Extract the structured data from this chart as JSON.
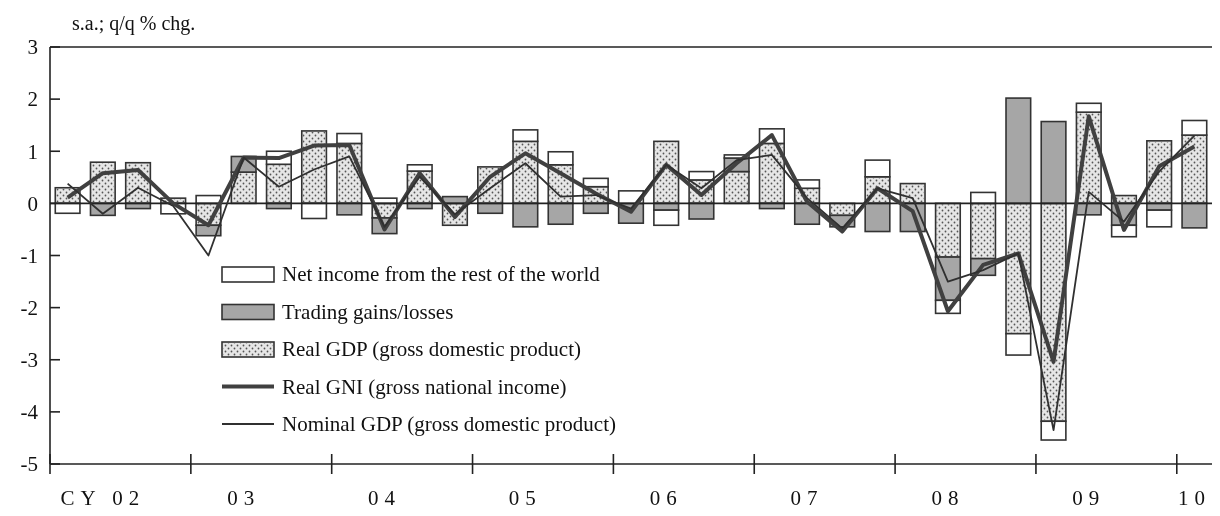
{
  "chart_data": {
    "type": "bar",
    "stacked": true,
    "ylabel": "s.a.; q/q % chg.",
    "categories": [
      null,
      "CY 02",
      null,
      null,
      null,
      "03",
      null,
      null,
      null,
      "04",
      null,
      null,
      null,
      "05",
      null,
      null,
      null,
      "06",
      null,
      null,
      null,
      "07",
      null,
      null,
      null,
      "08",
      null,
      null,
      null,
      "09",
      null,
      null,
      "10"
    ],
    "series": [
      {
        "name": "Real GDP (gross domestic product)",
        "color": "#e6e6e6",
        "values": [
          0.3,
          0.79,
          0.78,
          0.1,
          -0.42,
          0.6,
          0.75,
          1.39,
          1.15,
          -0.28,
          0.62,
          -0.42,
          0.7,
          1.19,
          0.74,
          0.32,
          0,
          1.19,
          0.45,
          0.61,
          1.15,
          0.29,
          -0.23,
          0.51,
          0.38,
          -1.03,
          -1.06,
          -2.5,
          -4.18,
          1.75,
          0.15,
          1.2,
          1.31
        ]
      },
      {
        "name": "Trading gains/losses",
        "color": "#a6a6a6",
        "values": [
          0,
          -0.23,
          -0.1,
          0,
          -0.2,
          0.3,
          -0.1,
          0,
          -0.22,
          -0.3,
          -0.1,
          0.13,
          -0.19,
          -0.45,
          -0.4,
          -0.19,
          -0.38,
          -0.13,
          -0.3,
          0.26,
          -0.1,
          -0.4,
          -0.22,
          -0.54,
          -0.54,
          -0.83,
          -0.32,
          2.02,
          1.57,
          -0.22,
          -0.42,
          -0.13,
          -0.47
        ]
      },
      {
        "name": "Net income from the rest of the world",
        "color": "#ffffff",
        "values": [
          -0.19,
          0,
          0,
          -0.2,
          0.15,
          0,
          0.25,
          -0.29,
          0.19,
          0.1,
          0.12,
          0,
          0,
          0.22,
          0.25,
          0.16,
          0.24,
          -0.29,
          0.16,
          0.06,
          0.28,
          0.16,
          0,
          0.32,
          0,
          -0.25,
          0.21,
          -0.41,
          -0.36,
          0.17,
          -0.22,
          -0.32,
          0.28
        ]
      },
      {
        "name": "Real GNI (gross national income)",
        "type": "line",
        "color": "#404040",
        "values": [
          0.11,
          0.58,
          0.64,
          0,
          -0.42,
          0.88,
          0.87,
          1.11,
          1.12,
          -0.5,
          0.58,
          -0.26,
          0.51,
          0.96,
          0.58,
          0.19,
          -0.16,
          0.74,
          0.16,
          0.77,
          1.31,
          0.03,
          -0.54,
          0.29,
          -0.15,
          -2.07,
          -1.18,
          -0.96,
          -3.04,
          1.67,
          -0.51,
          0.71,
          1.09
        ]
      },
      {
        "name": "Nominal GDP (gross domestic product)",
        "type": "line",
        "color": "#303030",
        "values": [
          0.38,
          -0.2,
          0.3,
          -0.05,
          -1.0,
          0.88,
          0.32,
          0.65,
          0.9,
          -0.45,
          0.51,
          -0.21,
          0.29,
          0.77,
          0.13,
          0.16,
          -0.1,
          0.74,
          0.29,
          0.83,
          0.93,
          0.1,
          -0.48,
          0.29,
          0.1,
          -1.5,
          -1.28,
          -0.96,
          -4.35,
          0.22,
          -0.35,
          0.61,
          1.3
        ]
      }
    ],
    "ref_lines": [
      {
        "axis": "y",
        "value": 0
      }
    ],
    "ylim": [
      -5,
      3
    ],
    "yticks": [
      -5,
      -4,
      -3,
      -2,
      -1,
      0,
      1,
      2,
      3
    ],
    "grid": false,
    "legend": "bottom left",
    "marker": "none",
    "line_style": "solid"
  }
}
